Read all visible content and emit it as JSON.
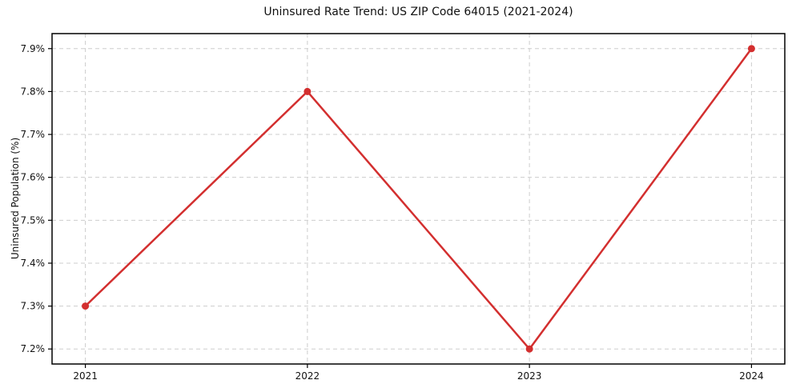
{
  "chart_data": {
    "type": "line",
    "title": "Uninsured Rate Trend: US ZIP Code 64015 (2021-2024)",
    "xlabel": "",
    "ylabel": "Uninsured Population (%)",
    "x": [
      2021,
      2022,
      2023,
      2024
    ],
    "values": [
      7.3,
      7.8,
      7.2,
      7.9
    ],
    "x_tick_labels": [
      "2021",
      "2022",
      "2023",
      "2024"
    ],
    "y_tick_values": [
      7.2,
      7.3,
      7.4,
      7.5,
      7.6,
      7.7,
      7.8,
      7.9
    ],
    "y_tick_labels": [
      "7.2%",
      "7.3%",
      "7.4%",
      "7.5%",
      "7.6%",
      "7.7%",
      "7.8%",
      "7.9%"
    ],
    "xlim": [
      2020.85,
      2024.15
    ],
    "ylim": [
      7.165,
      7.935
    ],
    "grid": true,
    "legend": "none",
    "colors": {
      "line": "#d32f2f",
      "marker": "#d32f2f",
      "grid": "#cdcdcd",
      "spine": "#000000",
      "text": "#111111",
      "background": "#ffffff"
    }
  }
}
